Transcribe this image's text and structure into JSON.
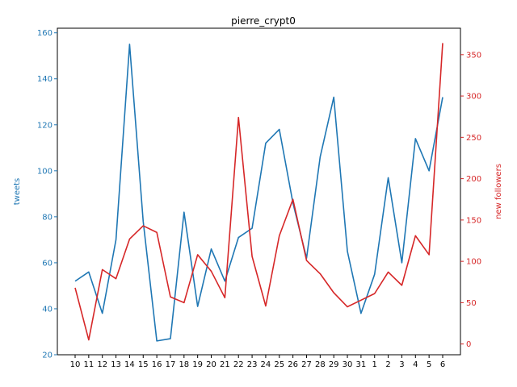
{
  "chart_data": {
    "type": "line",
    "title": "pierre_crypt0",
    "xlabel": "",
    "categories": [
      "10",
      "11",
      "12",
      "13",
      "14",
      "15",
      "16",
      "17",
      "18",
      "19",
      "20",
      "21",
      "22",
      "23",
      "24",
      "25",
      "26",
      "27",
      "28",
      "29",
      "30",
      "31",
      "1",
      "2",
      "3",
      "4",
      "5",
      "6"
    ],
    "series": [
      {
        "name": "tweets",
        "axis": "left",
        "color": "#1f77b4",
        "values": [
          52,
          56,
          38,
          70,
          155,
          78,
          26,
          27,
          82,
          41,
          66,
          52,
          71,
          75,
          112,
          118,
          86,
          62,
          106,
          132,
          65,
          38,
          55,
          97,
          60,
          114,
          100,
          132
        ]
      },
      {
        "name": "new followers",
        "axis": "right",
        "color": "#d62728",
        "values": [
          68,
          5,
          90,
          79,
          127,
          143,
          135,
          57,
          50,
          108,
          88,
          56,
          274,
          106,
          46,
          131,
          175,
          101,
          85,
          62,
          45,
          53,
          61,
          87,
          71,
          131,
          108,
          364
        ]
      }
    ],
    "y_left": {
      "label": "tweets",
      "color": "#1f77b4",
      "lim": [
        20,
        162
      ],
      "ticks": [
        20,
        40,
        60,
        80,
        100,
        120,
        140,
        160
      ]
    },
    "y_right": {
      "label": "new followers",
      "color": "#d62728",
      "lim": [
        -13,
        382
      ],
      "ticks": [
        0,
        50,
        100,
        150,
        200,
        250,
        300,
        350
      ]
    },
    "grid": false,
    "legend": "none"
  }
}
